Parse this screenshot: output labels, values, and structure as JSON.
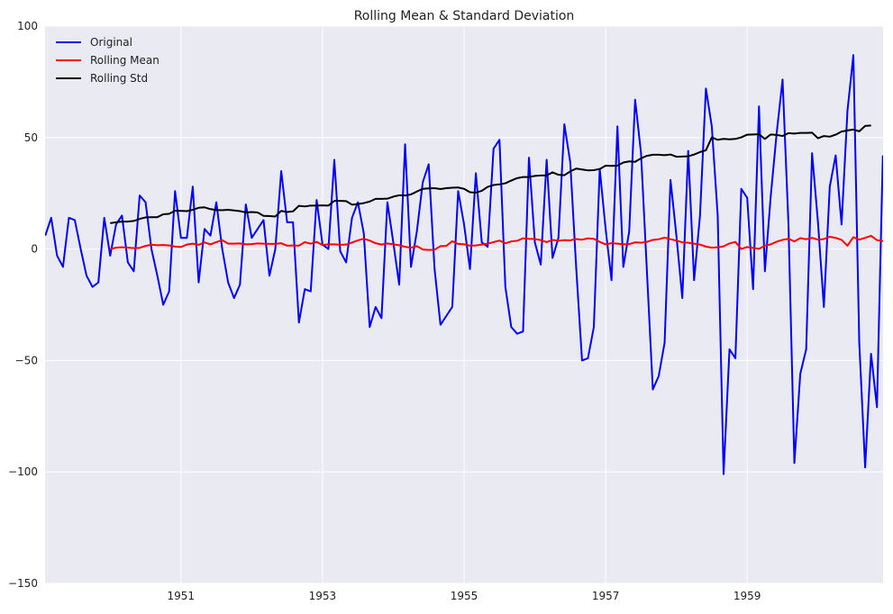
{
  "chart_data": {
    "type": "line",
    "title": "Rolling Mean & Standard Deviation",
    "xlabel": "",
    "ylabel": "",
    "xlim": [
      1949.08,
      1960.92
    ],
    "ylim": [
      -150,
      100
    ],
    "x_ticks": [
      1951,
      1953,
      1955,
      1957,
      1959
    ],
    "x_tick_labels": [
      "1951",
      "1953",
      "1955",
      "1957",
      "1959"
    ],
    "y_ticks": [
      -150,
      -100,
      -50,
      0,
      50,
      100
    ],
    "y_tick_labels": [
      "−150",
      "−100",
      "−50",
      "0",
      "50",
      "100"
    ],
    "grid": true,
    "legend_position": "top-left",
    "colors": {
      "background": "#eaeaf2",
      "grid": "#ffffff"
    },
    "series": [
      {
        "name": "Original",
        "color": "#0000ff",
        "x_start": 1949.083333,
        "x_step": 0.083333333,
        "values": [
          6,
          14,
          -3,
          -8,
          14,
          13,
          0,
          -12,
          -17,
          -15,
          14,
          -3,
          11,
          15,
          -6,
          -10,
          24,
          21,
          0,
          -12,
          -25,
          -19,
          26,
          5,
          5,
          28,
          -15,
          9,
          6,
          21,
          0,
          -15,
          -22,
          -16,
          20,
          5,
          9,
          13,
          -12,
          0,
          35,
          12,
          12,
          -33,
          -18,
          -19,
          22,
          2,
          0,
          40,
          -1,
          -6,
          14,
          21,
          7,
          -35,
          -26,
          -31,
          21,
          3,
          -16,
          47,
          -8,
          8,
          30,
          38,
          -9,
          -34,
          -30,
          -26,
          26,
          11,
          -9,
          34,
          3,
          1,
          45,
          49,
          -17,
          -35,
          -38,
          -37,
          41,
          3,
          -7,
          40,
          -4,
          5,
          56,
          39,
          -8,
          -50,
          -49,
          -35,
          36,
          9,
          -14,
          55,
          -8,
          8,
          67,
          43,
          -10,
          -63,
          -57,
          -42,
          31,
          6,
          -22,
          44,
          -14,
          15,
          72,
          55,
          15,
          -101,
          -45,
          -49,
          27,
          23,
          -18,
          64,
          -10,
          24,
          52,
          76,
          11,
          -96,
          -56,
          -45,
          43,
          12,
          -26,
          28,
          42,
          11,
          62,
          87,
          -42,
          -98,
          -47,
          -71,
          42
        ]
      },
      {
        "name": "Rolling Mean",
        "color": "#ff0000",
        "x_start": 1950.0,
        "x_step": 0.083333333,
        "values": [
          0.0,
          0.6,
          0.8,
          0.6,
          0.4,
          0.5,
          1.4,
          1.9,
          1.7,
          1.8,
          1.6,
          1.1,
          0.9,
          2.0,
          2.4,
          1.9,
          3.0,
          2.1,
          3.1,
          4.0,
          2.4,
          2.4,
          2.5,
          2.1,
          2.2,
          2.5,
          2.4,
          2.3,
          2.3,
          2.6,
          1.5,
          1.6,
          1.5,
          3.1,
          2.4,
          3.2,
          1.8,
          2.1,
          2.1,
          1.9,
          2.0,
          2.9,
          3.9,
          4.6,
          3.8,
          2.6,
          2.0,
          2.5,
          2.1,
          1.7,
          1.0,
          0.6,
          1.3,
          -0.2,
          -0.4,
          -0.3,
          1.3,
          1.4,
          3.5,
          2.3,
          2.1,
          1.5,
          1.6,
          2.0,
          2.4,
          3.1,
          3.8,
          2.6,
          3.4,
          3.7,
          4.8,
          4.6,
          4.5,
          4.0,
          3.1,
          4.1,
          3.7,
          4.0,
          3.9,
          4.5,
          4.2,
          4.8,
          4.6,
          3.2,
          2.1,
          2.6,
          2.4,
          2.1,
          2.2,
          3.0,
          2.8,
          3.2,
          4.1,
          4.4,
          5.1,
          4.4,
          3.8,
          3.0,
          2.8,
          2.4,
          2.0,
          1.1,
          0.6,
          0.8,
          1.2,
          2.5,
          3.2,
          0.0,
          0.9,
          0.5,
          0.1,
          1.5,
          2.1,
          3.3,
          4.1,
          4.6,
          3.4,
          4.9,
          4.4,
          5.0,
          4.2,
          4.5,
          5.5,
          5.0,
          4.1,
          1.5,
          5.3,
          4.2,
          5.0,
          5.9,
          4.0,
          3.6,
          4.4,
          2.5,
          2.0
        ]
      },
      {
        "name": "Rolling Std",
        "color": "#000000",
        "x_start": 1950.0,
        "x_step": 0.083333333,
        "values": [
          11.6,
          12.0,
          12.3,
          12.3,
          12.6,
          13.5,
          14.2,
          14.3,
          14.3,
          15.6,
          15.8,
          17.2,
          17.1,
          17.0,
          17.6,
          18.5,
          18.7,
          17.9,
          17.5,
          17.4,
          17.6,
          17.3,
          17.0,
          16.4,
          16.6,
          16.4,
          14.9,
          14.8,
          14.6,
          17.1,
          16.6,
          16.9,
          19.4,
          19.1,
          19.5,
          19.5,
          19.6,
          19.5,
          21.6,
          21.6,
          21.5,
          19.9,
          20.2,
          20.6,
          21.3,
          22.5,
          22.5,
          22.6,
          23.5,
          24.1,
          24.0,
          24.5,
          25.8,
          27.0,
          27.2,
          27.3,
          26.9,
          27.3,
          27.5,
          27.6,
          27.0,
          25.5,
          25.3,
          26.1,
          27.9,
          28.7,
          29.0,
          29.5,
          30.7,
          31.8,
          32.3,
          32.3,
          32.8,
          33.0,
          33.0,
          34.4,
          33.3,
          33.1,
          34.8,
          36.1,
          35.7,
          35.3,
          35.4,
          35.9,
          37.4,
          37.3,
          37.4,
          38.8,
          39.3,
          39.1,
          40.7,
          41.8,
          42.3,
          42.3,
          42.1,
          42.4,
          41.4,
          41.5,
          41.6,
          42.4,
          43.5,
          44.3,
          50.1,
          49.0,
          49.4,
          49.2,
          49.4,
          50.1,
          51.3,
          51.4,
          51.5,
          49.4,
          51.4,
          51.2,
          50.7,
          52.0,
          51.8,
          52.1,
          52.1,
          52.2,
          49.7,
          50.7,
          50.4,
          51.3,
          52.7,
          53.2,
          53.6,
          52.8,
          55.2,
          55.4
        ]
      }
    ]
  }
}
